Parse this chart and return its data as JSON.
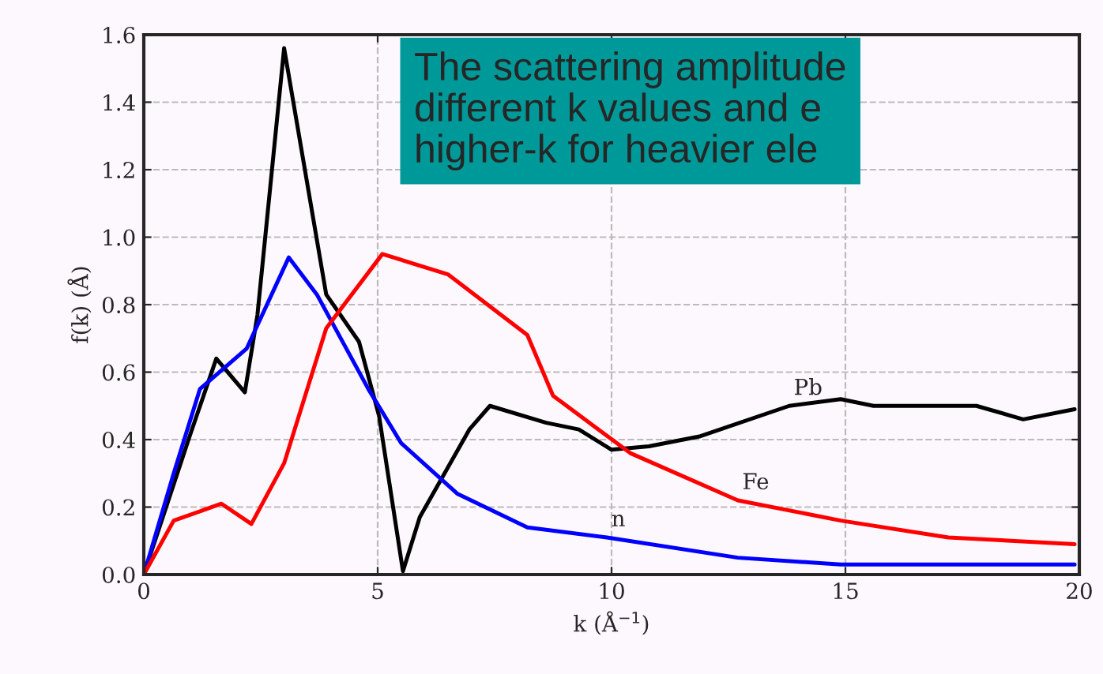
{
  "chart_data": {
    "type": "line",
    "xlabel": "k (Å$^{−1}$)",
    "ylabel": "f(k) (Å)",
    "xlim": [
      0,
      20
    ],
    "ylim": [
      0,
      1.6
    ],
    "xticks": [
      0,
      5,
      10,
      15,
      20
    ],
    "yticks": [
      {
        "value": 0,
        "label": "0.0"
      },
      {
        "value": 0.2,
        "label": "0.2"
      },
      {
        "value": 0.4,
        "label": "0.4"
      },
      {
        "value": 0.6,
        "label": "0.6"
      },
      {
        "value": 0.8,
        "label": "0.8"
      },
      {
        "value": 1.0,
        "label": "1.0"
      },
      {
        "value": 1.2,
        "label": "1.2"
      },
      {
        "value": 1.4,
        "label": "1.4"
      },
      {
        "value": 1.6,
        "label": "1.6"
      }
    ],
    "grid": true,
    "legend": false,
    "marker": "none",
    "line_style": "solid",
    "series": [
      {
        "name": "Pb",
        "color": "#000000",
        "x": [
          0,
          0.98,
          1.55,
          2.16,
          2.43,
          3.0,
          3.9,
          4.6,
          5.03,
          5.54,
          5.9,
          6.96,
          7.4,
          8.6,
          9.3,
          10.0,
          10.8,
          11.9,
          13.8,
          14.9,
          15.6,
          17.8,
          18.8,
          19.9
        ],
        "values": [
          0,
          0.41,
          0.64,
          0.54,
          0.77,
          1.56,
          0.83,
          0.69,
          0.47,
          0.01,
          0.17,
          0.43,
          0.5,
          0.45,
          0.43,
          0.37,
          0.38,
          0.41,
          0.5,
          0.52,
          0.5,
          0.5,
          0.46,
          0.49
        ]
      },
      {
        "name": "n",
        "color": "#0000ff",
        "x": [
          0,
          0.64,
          1.2,
          2.2,
          3.1,
          3.7,
          4.8,
          5.5,
          6.7,
          8.2,
          9.9,
          12.7,
          14.9,
          19.9
        ],
        "values": [
          0,
          0.3,
          0.55,
          0.67,
          0.94,
          0.83,
          0.55,
          0.39,
          0.24,
          0.14,
          0.11,
          0.05,
          0.03,
          0.03
        ]
      },
      {
        "name": "Fe",
        "color": "#ff0000",
        "x": [
          0,
          0.64,
          1.66,
          2.3,
          3.0,
          3.9,
          5.1,
          6.5,
          8.2,
          8.75,
          10.4,
          12.7,
          14.9,
          17.2,
          19.9
        ],
        "values": [
          0,
          0.16,
          0.21,
          0.15,
          0.33,
          0.73,
          0.95,
          0.89,
          0.71,
          0.53,
          0.36,
          0.22,
          0.16,
          0.11,
          0.09
        ]
      }
    ],
    "annotations": [
      "The scattering amplitude\ndifferent k values and e\nhigher-k for heavier ele"
    ]
  }
}
